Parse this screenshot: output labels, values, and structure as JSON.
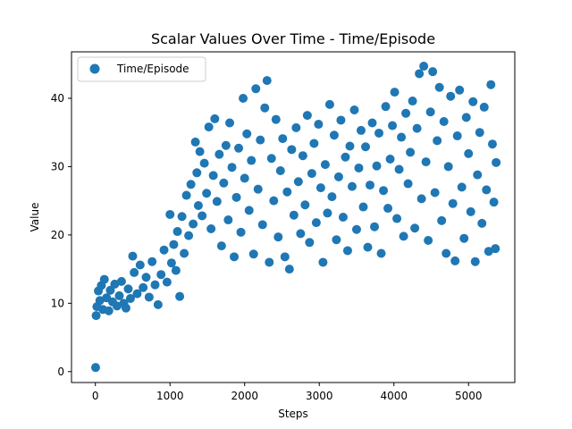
{
  "chart_data": {
    "type": "scatter",
    "title": "Scalar Values Over Time - Time/Episode",
    "xlabel": "Steps",
    "ylabel": "Value",
    "xlim": [
      -320,
      5620
    ],
    "ylim": [
      -1.6,
      46.8
    ],
    "xticks": [
      0,
      1000,
      2000,
      3000,
      4000,
      5000
    ],
    "yticks": [
      0,
      10,
      20,
      30,
      40
    ],
    "grid": false,
    "legend": {
      "placement": "top-left",
      "entries": [
        "Time/Episode"
      ]
    },
    "color": "#1f77b4",
    "series": [
      {
        "name": "Time/Episode",
        "points": [
          [
            3,
            0.6
          ],
          [
            10,
            8.2
          ],
          [
            20,
            9.5
          ],
          [
            40,
            11.8
          ],
          [
            60,
            10.4
          ],
          [
            80,
            12.6
          ],
          [
            100,
            9.1
          ],
          [
            120,
            13.5
          ],
          [
            150,
            10.8
          ],
          [
            180,
            8.9
          ],
          [
            200,
            11.9
          ],
          [
            230,
            10.2
          ],
          [
            260,
            12.8
          ],
          [
            290,
            9.6
          ],
          [
            320,
            11.1
          ],
          [
            350,
            13.2
          ],
          [
            380,
            10.0
          ],
          [
            410,
            9.3
          ],
          [
            440,
            12.1
          ],
          [
            470,
            10.7
          ],
          [
            500,
            16.9
          ],
          [
            520,
            14.5
          ],
          [
            560,
            11.4
          ],
          [
            600,
            15.6
          ],
          [
            640,
            12.3
          ],
          [
            680,
            13.8
          ],
          [
            720,
            10.9
          ],
          [
            760,
            16.1
          ],
          [
            800,
            12.7
          ],
          [
            840,
            9.8
          ],
          [
            880,
            14.2
          ],
          [
            920,
            17.8
          ],
          [
            960,
            13.1
          ],
          [
            1000,
            23.0
          ],
          [
            1020,
            15.9
          ],
          [
            1050,
            18.6
          ],
          [
            1080,
            14.8
          ],
          [
            1100,
            20.5
          ],
          [
            1130,
            11.0
          ],
          [
            1160,
            22.7
          ],
          [
            1190,
            17.3
          ],
          [
            1220,
            25.8
          ],
          [
            1250,
            19.9
          ],
          [
            1280,
            27.4
          ],
          [
            1310,
            21.6
          ],
          [
            1340,
            33.6
          ],
          [
            1360,
            29.1
          ],
          [
            1380,
            24.3
          ],
          [
            1400,
            32.2
          ],
          [
            1430,
            22.8
          ],
          [
            1460,
            30.5
          ],
          [
            1490,
            26.1
          ],
          [
            1520,
            35.8
          ],
          [
            1550,
            20.9
          ],
          [
            1580,
            28.7
          ],
          [
            1600,
            37.0
          ],
          [
            1630,
            24.9
          ],
          [
            1660,
            31.8
          ],
          [
            1690,
            18.4
          ],
          [
            1720,
            27.6
          ],
          [
            1750,
            33.1
          ],
          [
            1780,
            22.2
          ],
          [
            1800,
            36.4
          ],
          [
            1830,
            29.9
          ],
          [
            1860,
            16.8
          ],
          [
            1890,
            25.5
          ],
          [
            1920,
            32.7
          ],
          [
            1950,
            20.4
          ],
          [
            1980,
            40.0
          ],
          [
            2000,
            28.3
          ],
          [
            2030,
            34.8
          ],
          [
            2060,
            23.6
          ],
          [
            2090,
            30.9
          ],
          [
            2120,
            17.2
          ],
          [
            2150,
            41.4
          ],
          [
            2180,
            26.7
          ],
          [
            2210,
            33.9
          ],
          [
            2240,
            21.5
          ],
          [
            2270,
            38.6
          ],
          [
            2300,
            42.6
          ],
          [
            2330,
            16.0
          ],
          [
            2360,
            31.2
          ],
          [
            2390,
            25.0
          ],
          [
            2420,
            36.9
          ],
          [
            2450,
            19.7
          ],
          [
            2480,
            29.4
          ],
          [
            2510,
            34.1
          ],
          [
            2540,
            16.8
          ],
          [
            2570,
            26.3
          ],
          [
            2600,
            15.0
          ],
          [
            2630,
            32.5
          ],
          [
            2660,
            22.9
          ],
          [
            2690,
            35.7
          ],
          [
            2720,
            27.8
          ],
          [
            2750,
            20.2
          ],
          [
            2780,
            31.6
          ],
          [
            2810,
            24.4
          ],
          [
            2840,
            37.5
          ],
          [
            2870,
            18.9
          ],
          [
            2900,
            29.0
          ],
          [
            2930,
            33.4
          ],
          [
            2960,
            21.8
          ],
          [
            2990,
            36.2
          ],
          [
            3020,
            26.9
          ],
          [
            3050,
            16.0
          ],
          [
            3080,
            30.3
          ],
          [
            3110,
            23.2
          ],
          [
            3140,
            39.1
          ],
          [
            3170,
            25.6
          ],
          [
            3200,
            34.6
          ],
          [
            3230,
            19.3
          ],
          [
            3260,
            28.5
          ],
          [
            3290,
            36.8
          ],
          [
            3320,
            22.6
          ],
          [
            3350,
            31.4
          ],
          [
            3380,
            17.7
          ],
          [
            3410,
            33.0
          ],
          [
            3440,
            27.1
          ],
          [
            3470,
            38.3
          ],
          [
            3500,
            20.8
          ],
          [
            3530,
            29.8
          ],
          [
            3560,
            35.3
          ],
          [
            3590,
            24.1
          ],
          [
            3620,
            32.9
          ],
          [
            3650,
            18.2
          ],
          [
            3680,
            27.3
          ],
          [
            3710,
            36.4
          ],
          [
            3740,
            21.2
          ],
          [
            3770,
            30.1
          ],
          [
            3800,
            34.9
          ],
          [
            3830,
            17.3
          ],
          [
            3860,
            26.5
          ],
          [
            3890,
            38.8
          ],
          [
            3920,
            23.9
          ],
          [
            3950,
            31.1
          ],
          [
            3980,
            36.0
          ],
          [
            4010,
            40.9
          ],
          [
            4040,
            22.4
          ],
          [
            4070,
            29.6
          ],
          [
            4100,
            34.3
          ],
          [
            4130,
            19.8
          ],
          [
            4160,
            37.8
          ],
          [
            4190,
            27.5
          ],
          [
            4220,
            32.1
          ],
          [
            4250,
            39.6
          ],
          [
            4280,
            21.0
          ],
          [
            4310,
            35.6
          ],
          [
            4340,
            43.6
          ],
          [
            4370,
            25.3
          ],
          [
            4400,
            44.7
          ],
          [
            4430,
            30.7
          ],
          [
            4460,
            19.2
          ],
          [
            4490,
            38.0
          ],
          [
            4520,
            43.9
          ],
          [
            4550,
            26.2
          ],
          [
            4580,
            33.8
          ],
          [
            4610,
            41.6
          ],
          [
            4640,
            22.1
          ],
          [
            4670,
            36.6
          ],
          [
            4700,
            17.3
          ],
          [
            4730,
            30.0
          ],
          [
            4760,
            40.3
          ],
          [
            4790,
            24.6
          ],
          [
            4820,
            16.2
          ],
          [
            4850,
            34.5
          ],
          [
            4880,
            41.2
          ],
          [
            4910,
            27.0
          ],
          [
            4940,
            19.5
          ],
          [
            4970,
            37.2
          ],
          [
            5000,
            31.9
          ],
          [
            5030,
            23.4
          ],
          [
            5060,
            39.5
          ],
          [
            5090,
            16.1
          ],
          [
            5120,
            28.8
          ],
          [
            5150,
            35.0
          ],
          [
            5180,
            21.7
          ],
          [
            5210,
            38.7
          ],
          [
            5240,
            26.6
          ],
          [
            5270,
            17.6
          ],
          [
            5300,
            42.0
          ],
          [
            5320,
            33.3
          ],
          [
            5340,
            24.8
          ],
          [
            5360,
            18.0
          ],
          [
            5370,
            30.6
          ]
        ]
      }
    ]
  }
}
